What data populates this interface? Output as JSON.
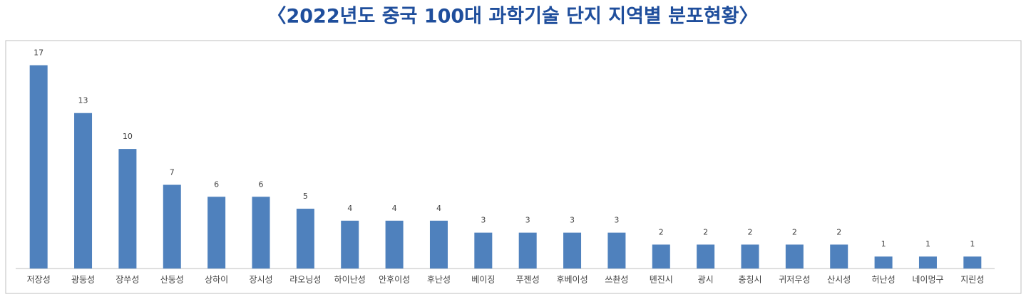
{
  "chart_data": {
    "type": "bar",
    "title": "〈2022년도 중국 100대 과학기술 단지 지역별 분포현황〉",
    "categories": [
      "저장성",
      "광둥성",
      "장쑤성",
      "산둥성",
      "상하이",
      "장시성",
      "랴오닝성",
      "하이난성",
      "안후이성",
      "후난성",
      "베이징",
      "푸젠성",
      "후베이성",
      "쓰촨성",
      "톈진시",
      "광시",
      "충칭시",
      "귀저우성",
      "산시성",
      "허난성",
      "네이멍구",
      "지린성"
    ],
    "values": [
      17,
      13,
      10,
      7,
      6,
      6,
      5,
      4,
      4,
      4,
      3,
      3,
      3,
      3,
      2,
      2,
      2,
      2,
      2,
      1,
      1,
      1
    ],
    "color": "#4f81bd",
    "ylim": [
      0,
      19
    ]
  }
}
